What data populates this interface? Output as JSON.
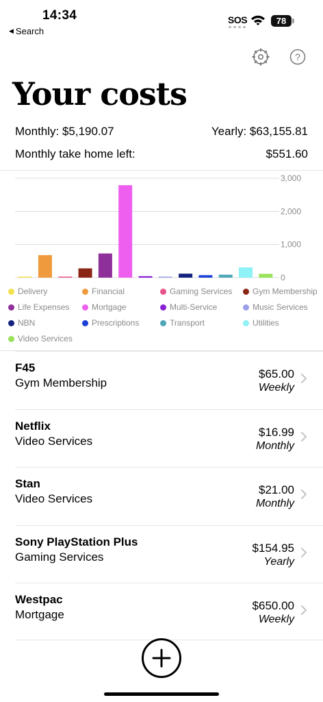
{
  "status_bar": {
    "time": "14:34",
    "back_label": "Search",
    "carrier": "SOS",
    "battery": "78"
  },
  "header": {
    "title": "Your costs",
    "settings_icon": "gear-icon",
    "help_icon": "question-mark-icon"
  },
  "summary": {
    "monthly": "Monthly: $5,190.07",
    "yearly": "Yearly: $63,155.81",
    "take_home_label": "Monthly take home left:",
    "take_home_value": "$551.60"
  },
  "chart_data": {
    "type": "bar",
    "categories": [
      "Delivery",
      "Financial",
      "Gaming Services",
      "Gym Membership",
      "Life Expenses",
      "Mortgage",
      "Multi-Service",
      "Music Services",
      "NBN",
      "Prescriptions",
      "Transport",
      "Utilities",
      "Video Services"
    ],
    "values": [
      15,
      680,
      30,
      280,
      730,
      2790,
      45,
      20,
      120,
      75,
      90,
      310,
      115
    ],
    "colors": [
      "#f2e04e",
      "#ef9a3c",
      "#e8528a",
      "#8b2516",
      "#8e2f9a",
      "#ee5ff0",
      "#8a21d6",
      "#9aa1e8",
      "#13237f",
      "#1c3fd6",
      "#4fa6b8",
      "#8ef2f7",
      "#98e35a"
    ],
    "ylim": [
      0,
      3000
    ],
    "yticks": [
      "0",
      "1,000",
      "2,000",
      "3,000"
    ],
    "ytick_values": [
      0,
      1000,
      2000,
      3000
    ],
    "grid": true,
    "legend_position": "bottom"
  },
  "costs": [
    {
      "name": "F45",
      "category": "Gym Membership",
      "amount": "$65.00",
      "frequency": "Weekly"
    },
    {
      "name": "Netflix",
      "category": "Video Services",
      "amount": "$16.99",
      "frequency": "Monthly"
    },
    {
      "name": "Stan",
      "category": "Video Services",
      "amount": "$21.00",
      "frequency": "Monthly"
    },
    {
      "name": "Sony PlayStation Plus",
      "category": "Gaming Services",
      "amount": "$154.95",
      "frequency": "Yearly"
    },
    {
      "name": "Westpac",
      "category": "Mortgage",
      "amount": "$650.00",
      "frequency": "Weekly"
    }
  ],
  "add_button": {
    "icon": "plus-icon"
  }
}
